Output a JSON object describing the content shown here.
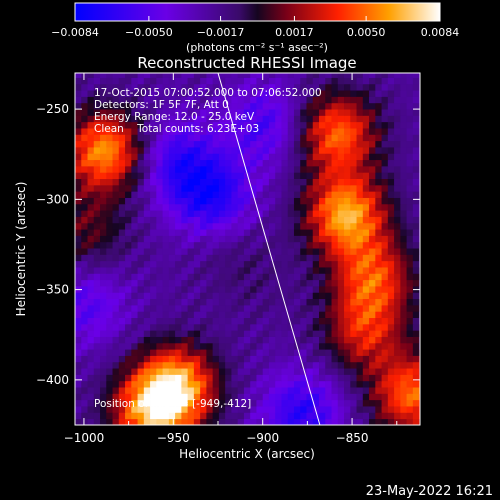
{
  "chart_data": {
    "type": "heatmap",
    "title": "Reconstructed RHESSI Image",
    "xlabel": "Heliocentric X (arcsec)",
    "ylabel": "Heliocentric Y (arcsec)",
    "x_range": [
      -1005,
      -812
    ],
    "y_range": [
      -425,
      -230
    ],
    "x_ticks": [
      -1000,
      -950,
      -900,
      -850
    ],
    "x_tick_labels": [
      "−1000",
      "−950",
      "−900",
      "−850"
    ],
    "y_ticks": [
      -250,
      -300,
      -350,
      -400
    ],
    "y_tick_labels": [
      "−250",
      "−300",
      "−350",
      "−400"
    ],
    "colorbar": {
      "min": -0.0084,
      "max": 0.0084,
      "ticks": [
        -0.0084,
        -0.005,
        -0.0017,
        0.0017,
        0.005,
        0.0084
      ],
      "tick_labels": [
        "−0.0084",
        "−0.0050",
        "−0.0017",
        "0.0017",
        "0.0050",
        "0.0084"
      ],
      "unit_label": "(photons cm⁻² s⁻¹ asec⁻²)"
    },
    "annotations": {
      "time_range": "17-Oct-2015 07:00:52.000 to 07:06:52.000",
      "detectors": "Detectors: 1F 5F 7F, Att 0",
      "energy": "Energy Range: 12.0 - 25.0 keV",
      "clean": "Clean    Total counts: 6.23E+03",
      "peak": "Position of Peak = [-949,-412]"
    },
    "peak_position": [
      -949,
      -412
    ],
    "blobs": [
      {
        "x": -990,
        "y": -275,
        "value": 0.008
      },
      {
        "x": -1000,
        "y": -320,
        "value": 0.003
      },
      {
        "x": -950,
        "y": -405,
        "value": 0.0084
      },
      {
        "x": -965,
        "y": -420,
        "value": 0.007
      },
      {
        "x": -860,
        "y": -265,
        "value": 0.007
      },
      {
        "x": -855,
        "y": -310,
        "value": 0.0084
      },
      {
        "x": -840,
        "y": -345,
        "value": 0.006
      },
      {
        "x": -845,
        "y": -375,
        "value": 0.005
      },
      {
        "x": -818,
        "y": -410,
        "value": 0.007
      },
      {
        "x": -920,
        "y": -330,
        "value": 0.001
      },
      {
        "x": -905,
        "y": -350,
        "value": 0.0006
      },
      {
        "x": -950,
        "y": -280,
        "value": -0.004
      },
      {
        "x": -930,
        "y": -300,
        "value": -0.005
      },
      {
        "x": -900,
        "y": -260,
        "value": -0.0035
      },
      {
        "x": -880,
        "y": -420,
        "value": -0.0045
      },
      {
        "x": -1000,
        "y": -360,
        "value": -0.003
      }
    ],
    "limb_line": {
      "x": [
        -925,
        -868
      ],
      "y": [
        -230,
        -425
      ]
    }
  },
  "footer": {
    "date": "23-May-2022 16:21"
  }
}
